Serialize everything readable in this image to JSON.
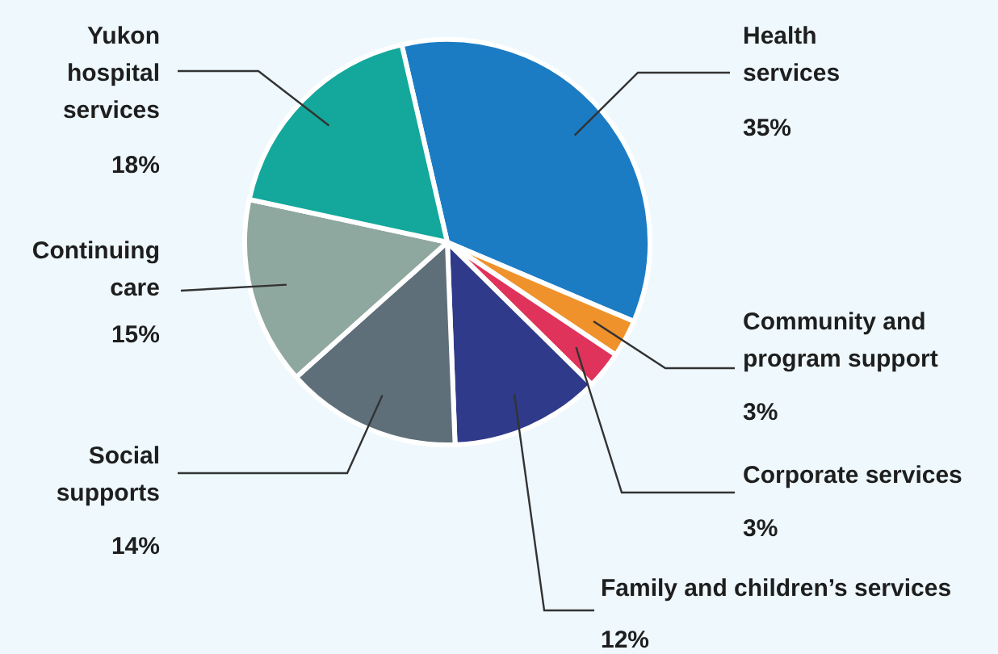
{
  "chart_data": {
    "type": "pie",
    "categories": [
      "Health services",
      "Community and program support",
      "Corporate services",
      "Family and children’s services",
      "Social supports",
      "Continuing care",
      "Yukon hospital services"
    ],
    "values": [
      35,
      3,
      3,
      12,
      14,
      15,
      18
    ],
    "colors": [
      "#1b7cc4",
      "#f0922b",
      "#e0335b",
      "#2f3a8a",
      "#5e6f7a",
      "#8fa89f",
      "#13a89b"
    ],
    "value_labels": [
      "35%",
      "3%",
      "3%",
      "12%",
      "14%",
      "15%",
      "18%"
    ]
  }
}
